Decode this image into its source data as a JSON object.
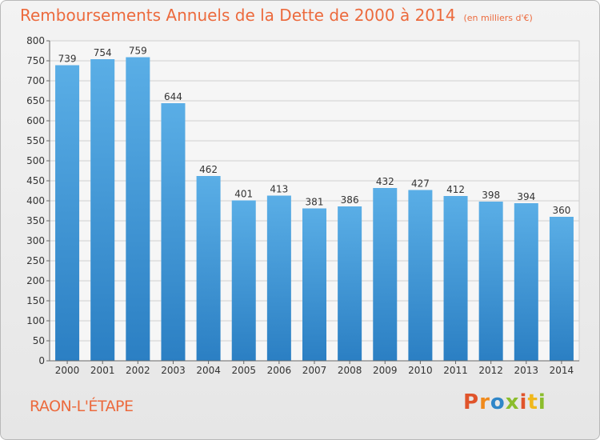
{
  "header": {
    "title": "Remboursements Annuels de la Dette de 2000 à 2014",
    "subtitle": "(en milliers d'€)"
  },
  "footer": {
    "city": "RAON-L'ÉTAPE",
    "logo_text": "Proxiti"
  },
  "colors": {
    "title": "#ec6a3d",
    "bar_top": "#5aaee6",
    "bar_bottom": "#2b7fc3",
    "grid": "#d0d0d0"
  },
  "chart_data": {
    "type": "bar",
    "title": "Remboursements Annuels de la Dette de 2000 à 2014",
    "subtitle": "(en milliers d'€)",
    "categories": [
      "2000",
      "2001",
      "2002",
      "2003",
      "2004",
      "2005",
      "2006",
      "2007",
      "2008",
      "2009",
      "2010",
      "2011",
      "2012",
      "2013",
      "2014"
    ],
    "values": [
      739,
      754,
      759,
      644,
      462,
      401,
      413,
      381,
      386,
      432,
      427,
      412,
      398,
      394,
      360
    ],
    "ylim": [
      0,
      800
    ],
    "ytick_step": 50,
    "grid": true
  }
}
